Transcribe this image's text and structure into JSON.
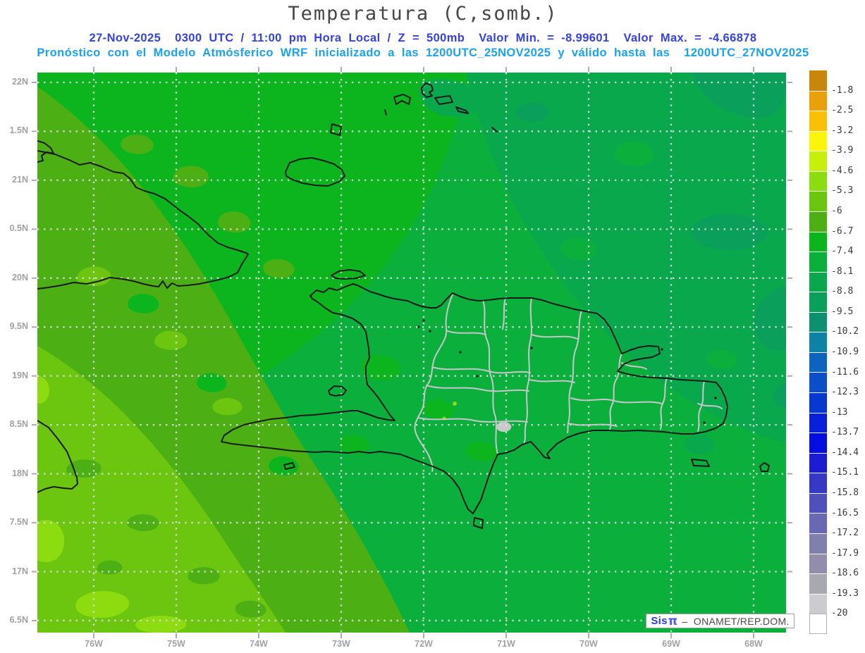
{
  "header": {
    "title": "Temperatura (C,somb.)",
    "title_color": "#464646",
    "line1": "27-Nov-2025  0300 UTC / 11:00 pm Hora Local / Z = 500mb  Valor Min. = -8.99601  Valor Max. = -4.66878",
    "line1_color": "#3540ee",
    "line2": "Pronóstico con el Modelo Atmósferico WRF inicializado a las 1200UTC_25NOV2025 y válido hasta las  1200UTC_27NOV2025",
    "line2_color": "#18a2f6"
  },
  "branding": {
    "prefix": "Sis",
    "pi": "π",
    "suffix": " –  ONAMET/REP.DOM.",
    "prefix_color": "#2b3be8",
    "pi_color": "#5a5ae8",
    "suffix_color": "#4a4a4a"
  },
  "axes": {
    "lat_labels": [
      "22N",
      "1.5N",
      "21N",
      "0.5N",
      "20N",
      "9.5N",
      "19N",
      "8.5N",
      "18N",
      "7.5N",
      "17N",
      "6.5N"
    ],
    "lon_labels": [
      "76W",
      "75W",
      "74W",
      "73W",
      "72W",
      "71W",
      "70W",
      "69W",
      "68W"
    ]
  },
  "colorbar": {
    "labels": [
      "-1.8",
      "-2.5",
      "-3.2",
      "-3.9",
      "-4.6",
      "-5.3",
      "-6",
      "-6.7",
      "-7.4",
      "-8.1",
      "-8.8",
      "-9.5",
      "-10.2",
      "-10.9",
      "-11.6",
      "-12.3",
      "-13",
      "-13.7",
      "-14.4",
      "-15.1",
      "-15.8",
      "-16.5",
      "-17.2",
      "-17.9",
      "-18.6",
      "-19.3",
      "-20"
    ],
    "colors": [
      "#C8860B",
      "#E8A00B",
      "#FAC008",
      "#FAF50A",
      "#C6F00B",
      "#8CDC10",
      "#6CC60F",
      "#4CB014",
      "#0CB41E",
      "#0BAF3C",
      "#0AA84C",
      "#0AA05C",
      "#0C9070",
      "#0D82A4",
      "#0C64BE",
      "#0A4ECA",
      "#0838D2",
      "#0620DC",
      "#040EE2",
      "#1C1CD4",
      "#3838C6",
      "#5050BC",
      "#6868B4",
      "#8080AE",
      "#948CAC",
      "#A8A8B0",
      "#CCCCD0",
      "#FFFFFF"
    ]
  },
  "palette": {
    "coastline": "#1a1a1a",
    "province": "#c6c6ca",
    "grid": "#dcdce0",
    "tick": "#acacb0",
    "lake_gray": "#c9c9c9",
    "station_dot": "#151515"
  }
}
